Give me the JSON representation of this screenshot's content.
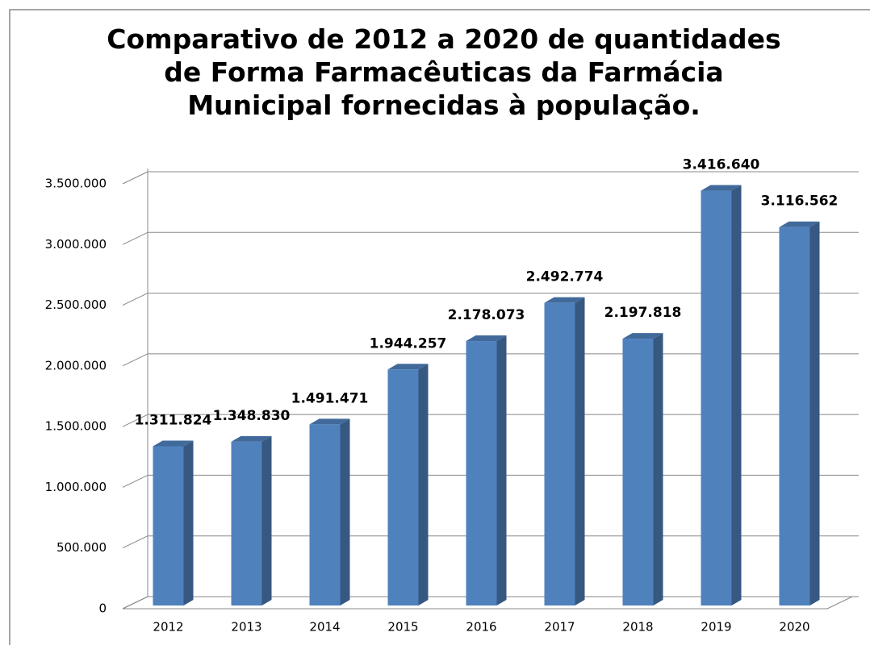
{
  "chart_data": {
    "type": "bar3d",
    "title": "Comparativo de 2012 a 2020 de quantidades de Forma Farmacêuticas da Farmácia Municipal fornecidas à população.",
    "categories": [
      "2012",
      "2013",
      "2014",
      "2015",
      "2016",
      "2017",
      "2018",
      "2019",
      "2020"
    ],
    "values": [
      1311824,
      1348830,
      1491471,
      1944257,
      2178073,
      2492774,
      2197818,
      3416640,
      3116562
    ],
    "value_labels": [
      "1.311.824",
      "1.348.830",
      "1.491.471",
      "1.944.257",
      "2.178.073",
      "2.492.774",
      "2.197.818",
      "3.416.640",
      "3.116.562"
    ],
    "color": "#4f81bd",
    "ylim": [
      0,
      3500000
    ],
    "yticks": [
      0,
      {
        "value": 500000,
        "label": "500.000"
      },
      {
        "value": 1000000,
        "label": "1.000.000"
      },
      {
        "value": 1500000,
        "label": "1.500.000"
      },
      {
        "value": 2000000,
        "label": "2.000.000"
      },
      {
        "value": 2500000,
        "label": "2.500.000"
      },
      {
        "value": 3000000,
        "label": "3.000.000"
      },
      {
        "value": 3500000,
        "label": "3.500.000"
      }
    ],
    "grid": true
  }
}
